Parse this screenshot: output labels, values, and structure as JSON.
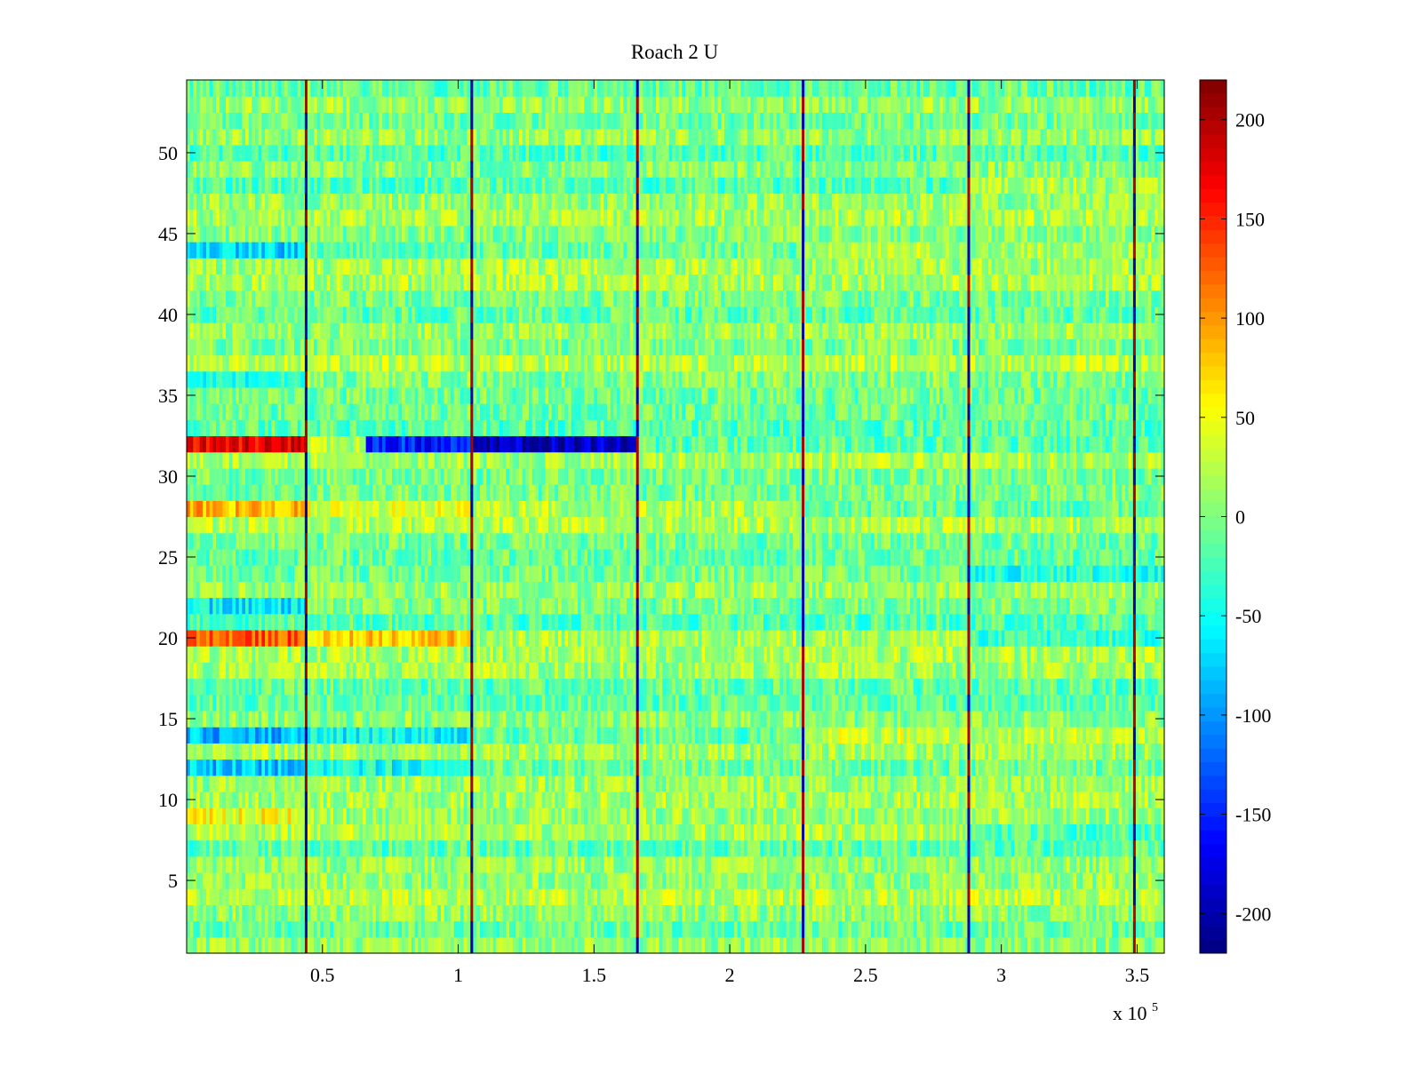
{
  "chart_data": {
    "type": "heatmap",
    "title": "Roach 2 U",
    "xlabel": "",
    "ylabel": "",
    "x_multiplier_label": {
      "base": "x 10",
      "exponent": "5"
    },
    "xlim": [
      0,
      3.6
    ],
    "ylim": [
      0.5,
      54.5
    ],
    "x_units_scale": 100000,
    "x_ticks": [
      0.5,
      1,
      1.5,
      2,
      2.5,
      3,
      3.5
    ],
    "x_tick_labels": [
      "0.5",
      "1",
      "1.5",
      "2",
      "2.5",
      "3",
      "3.5"
    ],
    "y_ticks": [
      5,
      10,
      15,
      20,
      25,
      30,
      35,
      40,
      45,
      50
    ],
    "y_tick_labels": [
      "5",
      "10",
      "15",
      "20",
      "25",
      "30",
      "35",
      "40",
      "45",
      "50"
    ],
    "rows": 54,
    "colormap": "jet",
    "clim": [
      -220,
      220
    ],
    "colorbar_ticks": [
      200,
      150,
      100,
      50,
      0,
      -50,
      -100,
      -150,
      -200
    ],
    "colorbar_tick_labels": [
      "200",
      "150",
      "100",
      "50",
      "0",
      "-50",
      "-100",
      "-150",
      "-200"
    ],
    "boundary_x": [
      0.44,
      1.05,
      1.66,
      2.27,
      2.88,
      3.49
    ],
    "segment_row_bias": [
      {
        "x_range": [
          0,
          0.44
        ],
        "rows": {
          "32": 190,
          "28": 70,
          "20": 110,
          "22": -60,
          "14": -70,
          "12": -70,
          "44": -60,
          "36": -40,
          "9": 40
        }
      },
      {
        "x_range": [
          0.44,
          1.05
        ],
        "rows": {
          "32": 40,
          "28": 20,
          "20": 60,
          "14": -40,
          "12": -40
        }
      },
      {
        "x_range": [
          0.66,
          1.66
        ],
        "rows": {
          "32": -175
        }
      },
      {
        "x_range": [
          2.27,
          3.6
        ],
        "rows": {
          "14": 45,
          "28": -30,
          "44": 30
        }
      },
      {
        "x_range": [
          2.88,
          3.6
        ],
        "rows": {
          "48": 35,
          "20": -45,
          "24": -35,
          "8": -40
        }
      }
    ]
  }
}
